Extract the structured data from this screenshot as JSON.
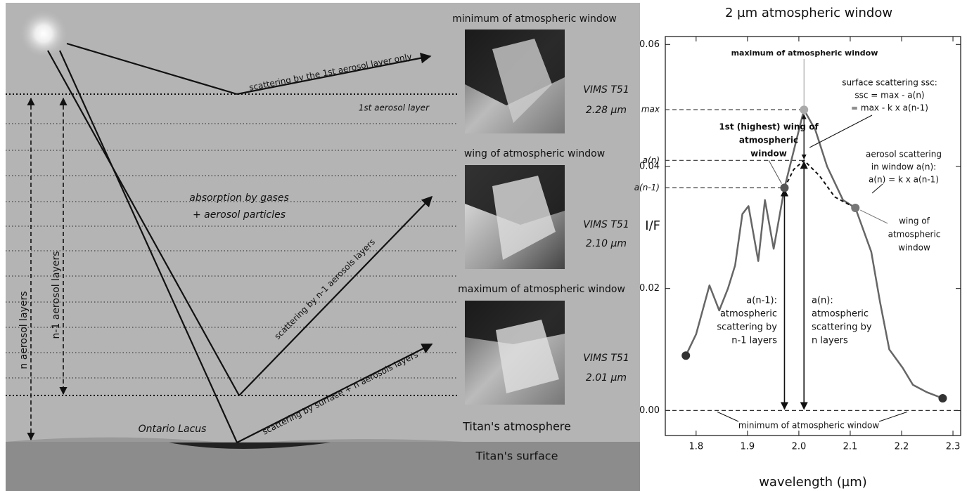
{
  "diagram": {
    "ray_top": "scattering by the 1st aerosol layer only",
    "layer1": "1st aerosol layer",
    "absorption": [
      "absorption by gases",
      "+ aerosol particles"
    ],
    "ray_mid": "scattering by n-1 aerosols layers",
    "ray_low": "scattering by surface + n aerosols layers",
    "n_layers": "n aerosol layers",
    "n1_layers": "n-1 aerosol layers",
    "lake": "Ontario Lacus",
    "atmosphere": "Titan's atmosphere",
    "surface": "Titan's surface",
    "panels": [
      {
        "title": "minimum of atmospheric window",
        "instrument": "VIMS T51",
        "wavelength": "2.28 µm"
      },
      {
        "title": "wing of atmospheric window",
        "instrument": "VIMS T51",
        "wavelength": "2.10 µm"
      },
      {
        "title": "maximum of atmospheric window",
        "instrument": "VIMS T51",
        "wavelength": "2.01 µm"
      }
    ]
  },
  "chart_data": {
    "type": "line",
    "title": "2 µm atmospheric window",
    "x_label": "wavelength (µm)",
    "y_label": "I/F",
    "x": [
      1.78,
      1.8,
      1.826,
      1.845,
      1.862,
      1.876,
      1.89,
      1.902,
      1.921,
      1.934,
      1.951,
      1.972,
      2.01,
      2.032,
      2.055,
      2.086,
      2.11,
      2.141,
      2.158,
      2.176,
      2.202,
      2.222,
      2.249,
      2.28
    ],
    "values": [
      0.009,
      0.0125,
      0.0205,
      0.0164,
      0.02,
      0.0238,
      0.0322,
      0.0335,
      0.0245,
      0.0345,
      0.0265,
      0.0365,
      0.0493,
      0.046,
      0.04,
      0.0345,
      0.0332,
      0.026,
      0.0178,
      0.01,
      0.007,
      0.0042,
      0.003,
      0.002
    ],
    "color": "#666666",
    "aerosol_curve": {
      "x": [
        1.972,
        1.99,
        2.01,
        2.04,
        2.07,
        2.11
      ],
      "values": [
        0.0365,
        0.0395,
        0.041,
        0.0385,
        0.035,
        0.0332
      ]
    },
    "points": [
      {
        "x": 1.78,
        "y": 0.009,
        "color": "#333333"
      },
      {
        "x": 1.972,
        "y": 0.0365,
        "color": "#555555"
      },
      {
        "x": 2.01,
        "y": 0.0493,
        "color": "#aaaaaa"
      },
      {
        "x": 2.11,
        "y": 0.0332,
        "color": "#777777"
      },
      {
        "x": 2.28,
        "y": 0.002,
        "color": "#333333"
      }
    ],
    "reference_lines": [
      {
        "label": "max",
        "value": 0.0493
      },
      {
        "label": "a(n)",
        "value": 0.041
      },
      {
        "label": "a(n-1)",
        "value": 0.0365
      }
    ],
    "annotations": [
      [
        "maximum of atmospheric window"
      ],
      [
        "surface scattering ssc:",
        "ssc = max - a(n)",
        "= max - k x a(n-1)"
      ],
      [
        "1st (highest) wing of",
        "atmospheric",
        "window"
      ],
      [
        "aerosol scattering",
        "in window a(n):",
        "a(n) = k x a(n-1)"
      ],
      [
        "wing of",
        "atmospheric",
        "window"
      ],
      [
        "a(n-1):",
        "atmospheric",
        "scattering by",
        "n-1 layers"
      ],
      [
        "a(n):",
        "atmospheric",
        "scattering by",
        "n layers"
      ],
      [
        "minimum of atmospheric window"
      ]
    ],
    "xlim": [
      1.74,
      2.315
    ],
    "ylim": [
      -0.0041,
      0.0613
    ],
    "xticks": [
      1.8,
      1.9,
      {
        "value": 2,
        "label": "2.0"
      },
      2.1,
      2.2,
      2.3
    ],
    "yticks": [
      {
        "value": 0,
        "label": "0.00"
      },
      {
        "value": 0.02,
        "label": "0.02"
      },
      {
        "value": 0.04,
        "label": "0.04"
      },
      {
        "value": 0.06,
        "label": "0.06"
      }
    ]
  }
}
